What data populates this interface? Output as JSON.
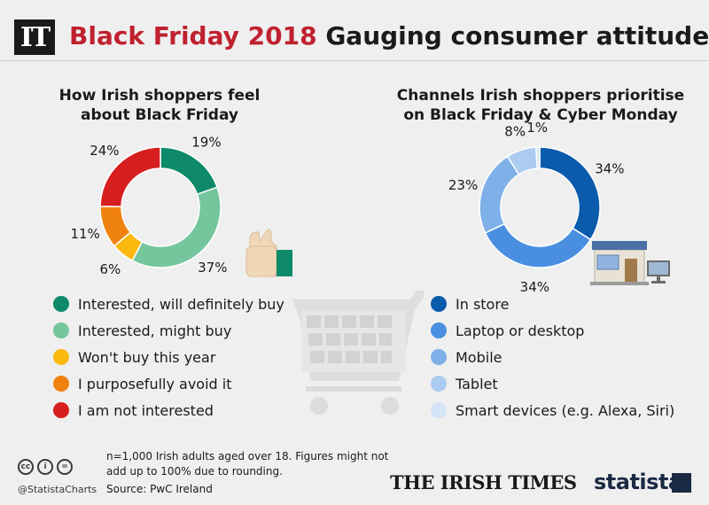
{
  "header": {
    "logo": "IT",
    "title_accent": "Black Friday 2018",
    "title_rest": "Gauging consumer attitudes"
  },
  "chart_data": [
    {
      "type": "pie",
      "title": "How Irish shoppers feel about Black Friday",
      "title_lines": [
        "How Irish shoppers feel",
        "about Black Friday"
      ],
      "categories": [
        "Interested, will definitely buy",
        "Interested, might buy",
        "Won't buy this year",
        "I purposefully avoid it",
        "I am not interested"
      ],
      "values": [
        19,
        37,
        6,
        11,
        24
      ],
      "value_labels": [
        "19%",
        "37%",
        "6%",
        "11%",
        "24%"
      ],
      "colors": [
        "#0e8a6a",
        "#74c69d",
        "#fbb80f",
        "#f0820f",
        "#d71e1e"
      ],
      "donut": true,
      "legend_position": "below"
    },
    {
      "type": "pie",
      "title": "Channels Irish shoppers prioritise on Black Friday & Cyber Monday",
      "title_lines": [
        "Channels Irish shoppers prioritise",
        "on Black Friday & Cyber Monday"
      ],
      "categories": [
        "In store",
        "Laptop or desktop",
        "Mobile",
        "Tablet",
        "Smart devices (e.g. Alexa, Siri)"
      ],
      "values": [
        34,
        34,
        23,
        8,
        1
      ],
      "value_labels": [
        "34%",
        "34%",
        "23%",
        "8%",
        "1%"
      ],
      "colors": [
        "#0b5bad",
        "#4a8fdf",
        "#7fb0e8",
        "#abcbf0",
        "#d4e5f8"
      ],
      "donut": true,
      "legend_position": "below"
    }
  ],
  "footer": {
    "note": "n=1,000 Irish adults aged over 18. Figures might not add up to 100% due to rounding.",
    "source": "Source: PwC Ireland",
    "handle": "@StatistaCharts",
    "cc_icons": [
      "cc",
      "i",
      "="
    ],
    "brand_left": "THE IRISH TIMES",
    "brand_right": "statista"
  }
}
